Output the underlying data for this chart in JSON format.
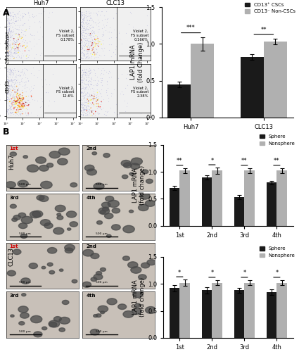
{
  "panel_A_bar": {
    "groups": [
      "Huh7",
      "CLC13"
    ],
    "sphere_values": [
      0.45,
      0.82
    ],
    "sphere_errors": [
      0.04,
      0.04
    ],
    "nonsphere_values": [
      1.0,
      1.03
    ],
    "nonsphere_errors": [
      0.09,
      0.04
    ],
    "bar_color_sphere": "#1a1a1a",
    "bar_color_nonsphere": "#b0b0b0",
    "ylabel": "LAP1 mRNA\n(fold Change)",
    "ylim": [
      0,
      1.5
    ],
    "yticks": [
      0.0,
      0.5,
      1.0,
      1.5
    ],
    "legend_labels": [
      "CD13⁺ CSCs",
      "CD13⁻ Non-CSCs"
    ],
    "sig_A": [
      "***",
      "**"
    ]
  },
  "panel_B_huh7": {
    "categories": [
      "1st",
      "2nd",
      "3rd",
      "4th"
    ],
    "sphere_values": [
      0.7,
      0.9,
      0.53,
      0.8
    ],
    "sphere_errors": [
      0.04,
      0.04,
      0.04,
      0.03
    ],
    "nonsphere_values": [
      1.02,
      1.02,
      1.02,
      1.02
    ],
    "nonsphere_errors": [
      0.05,
      0.06,
      0.05,
      0.05
    ],
    "bar_color_sphere": "#1a1a1a",
    "bar_color_nonsphere": "#b0b0b0",
    "ylabel": "LAP1 mRNA\n(fold change)",
    "ylim": [
      0,
      1.5
    ],
    "yticks": [
      0.0,
      0.5,
      1.0,
      1.5
    ],
    "legend_labels": [
      "Sphere",
      "Nonsphere"
    ],
    "sig": [
      "**",
      "*",
      "**",
      "**"
    ]
  },
  "panel_B_clc13": {
    "categories": [
      "1st",
      "2nd",
      "3rd",
      "4th"
    ],
    "sphere_values": [
      0.92,
      0.88,
      0.88,
      0.85
    ],
    "sphere_errors": [
      0.06,
      0.06,
      0.05,
      0.05
    ],
    "nonsphere_values": [
      1.02,
      1.02,
      1.02,
      1.02
    ],
    "nonsphere_errors": [
      0.06,
      0.05,
      0.05,
      0.05
    ],
    "bar_color_sphere": "#1a1a1a",
    "bar_color_nonsphere": "#b0b0b0",
    "ylabel": "LAP1 mRNA\n(fold change)",
    "ylim": [
      0,
      1.5
    ],
    "yticks": [
      0.0,
      0.5,
      1.0,
      1.5
    ],
    "legend_labels": [
      "Sphere",
      "Nonsphere"
    ],
    "sig": [
      "*",
      "*",
      "*",
      "*"
    ]
  },
  "flow_cytometry": {
    "panels": [
      {
        "label": "Violet 2,\nFS subset\n0.178%"
      },
      {
        "label": "Violet 2,\nFS subset\n0.166%"
      },
      {
        "label": "Violet 2,\nFS subset\n12.6%"
      },
      {
        "label": "Violet 2,\nFS subset\n2.38%"
      }
    ],
    "row_labels": [
      "CD13 isotype",
      "CD13"
    ],
    "col_labels": [
      "Huh7",
      "CLC13"
    ]
  },
  "microscopy_labels": {
    "huh7": [
      "1st",
      "2nd",
      "3rd",
      "4th"
    ],
    "clc13": [
      "1st",
      "2nd",
      "3rd",
      "4th"
    ],
    "scale_bar": "500 μm"
  },
  "panel_labels": {
    "A": "A",
    "B": "B"
  },
  "figure_bg": "#ffffff"
}
